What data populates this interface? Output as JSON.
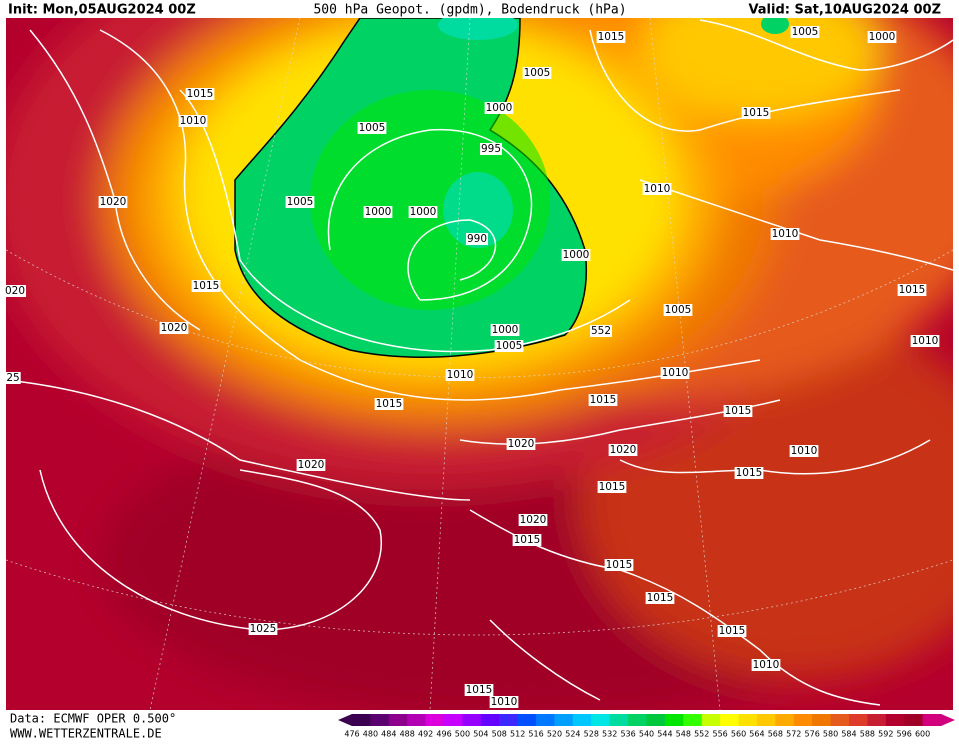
{
  "header": {
    "init": "Init: Mon,05AUG2024 00Z",
    "title": "500 hPa Geopot. (gpdm), Bodendruck (hPa)",
    "valid": "Valid: Sat,10AUG2024 00Z"
  },
  "isobar_labels": [
    "1015",
    "1005",
    "1005",
    "1000",
    "1015",
    "1010",
    "1000",
    "1015",
    "1005",
    "995",
    "1010",
    "1020",
    "1005",
    "1000",
    "1000",
    "990",
    "1010",
    "1000",
    "1015",
    "1015",
    "1020",
    "1000",
    "1005",
    "1005",
    "552",
    "1010",
    "1010",
    "1010",
    "1015",
    "1015",
    "1015",
    "1020",
    "1020",
    "1010",
    "1020",
    "1015",
    "1015",
    "1020",
    "1015",
    "1015",
    "1015",
    "1025",
    "1015",
    "1010",
    "1015",
    "1010",
    "020",
    "25"
  ],
  "colorbar": {
    "labels": [
      476,
      480,
      484,
      488,
      492,
      496,
      500,
      504,
      508,
      512,
      516,
      520,
      524,
      528,
      532,
      536,
      540,
      544,
      548,
      552,
      556,
      560,
      564,
      568,
      572,
      576,
      580,
      584,
      588,
      592,
      596,
      600
    ],
    "colors": [
      "#3c0050",
      "#5a0070",
      "#8c008c",
      "#b400b4",
      "#dc00dc",
      "#c800ff",
      "#9600ff",
      "#6400ff",
      "#3c28ff",
      "#0050ff",
      "#0078ff",
      "#00a0ff",
      "#00c8ff",
      "#00e6e6",
      "#00dca0",
      "#00d264",
      "#00c83c",
      "#00e600",
      "#32ff00",
      "#c8ff00",
      "#ffff00",
      "#ffe100",
      "#ffc800",
      "#ffaa00",
      "#ff8c00",
      "#f07800",
      "#e65a1e",
      "#dc3c28",
      "#c81e32",
      "#b4002d",
      "#a00028",
      "#d2007d"
    ]
  },
  "footer": {
    "source": "Data: ECMWF OPER 0.500°",
    "website": "WWW.WETTERZENTRALE.DE"
  }
}
